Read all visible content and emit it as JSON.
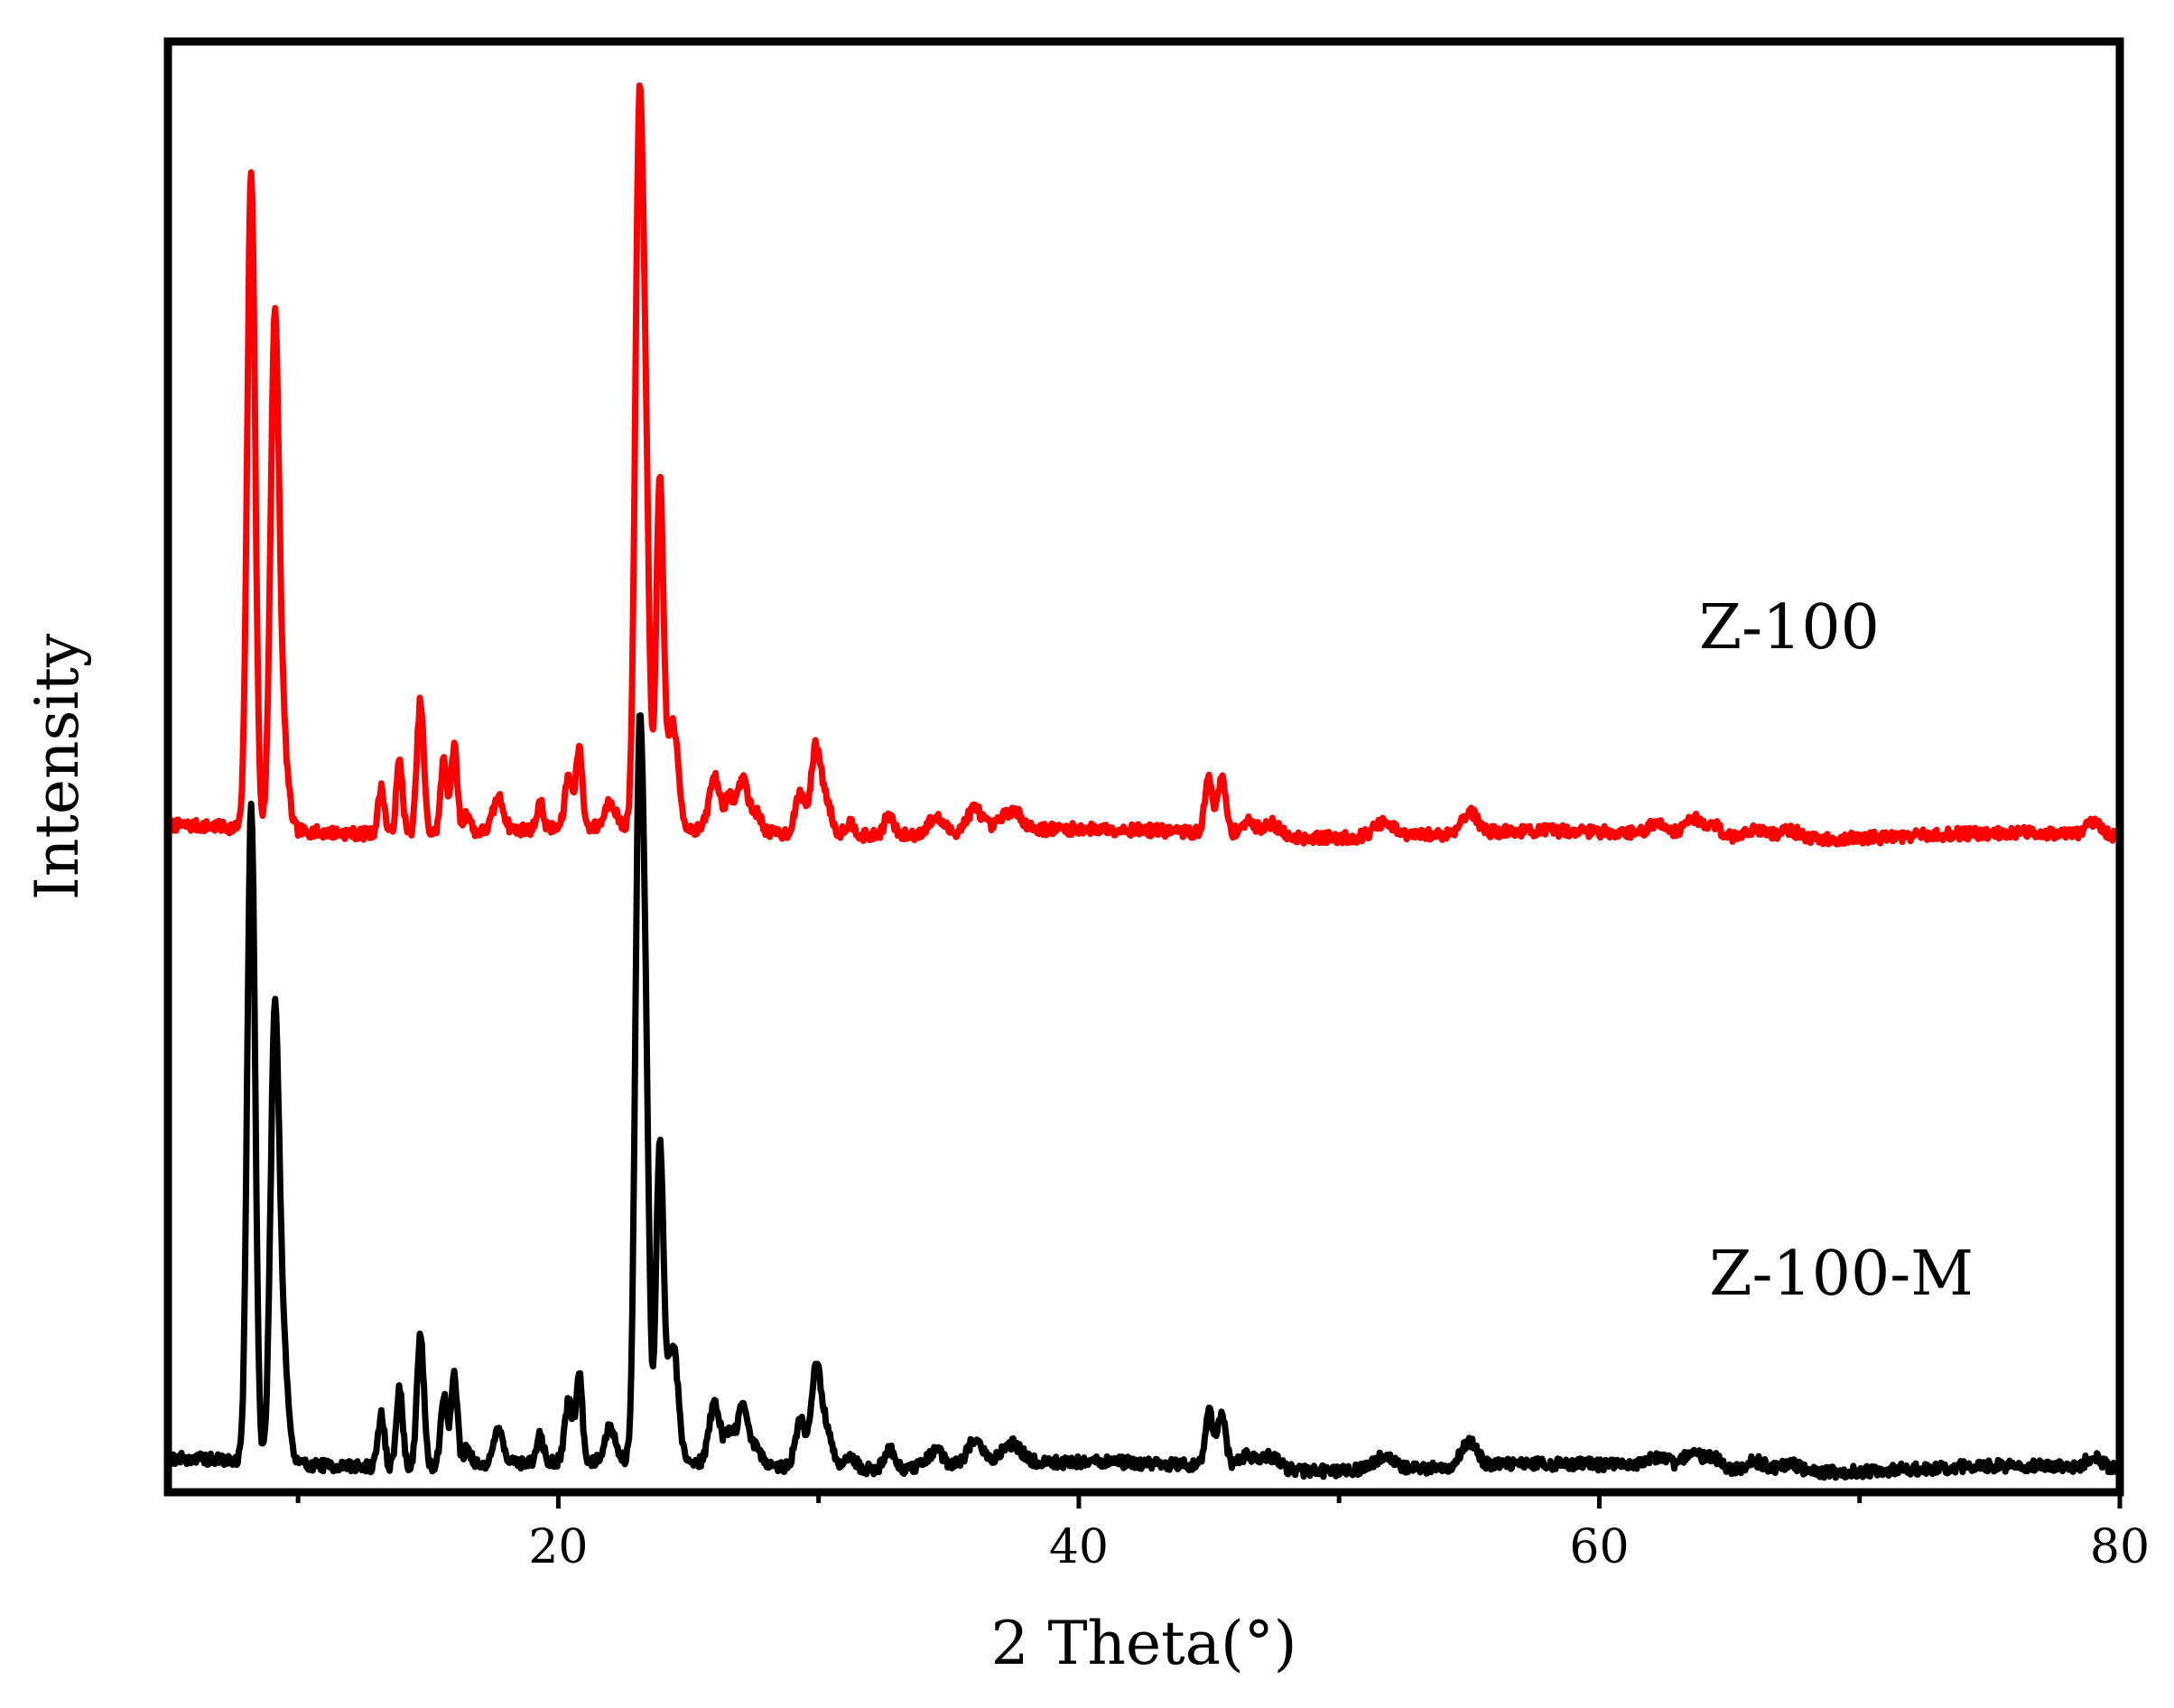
{
  "chart_data": {
    "type": "line",
    "xlabel": "2 Theta(°)",
    "ylabel": "Intensity",
    "xlim": [
      5,
      80
    ],
    "ylim": [
      0,
      110
    ],
    "x_ticks": [
      20,
      40,
      60,
      80
    ],
    "x_minor_ticks": [
      10,
      30,
      50,
      70
    ],
    "y_ticks_shown": false,
    "grid": false,
    "legend": "none",
    "series": [
      {
        "name": "Z-100",
        "color": "#ff0000",
        "baseline": 50,
        "noise_seed": 7,
        "peaks": [
          [
            8.2,
            50,
            0.15
          ],
          [
            9.1,
            37,
            0.16
          ],
          [
            9.4,
            7,
            0.2
          ],
          [
            13.2,
            3.5,
            0.12
          ],
          [
            13.9,
            5.5,
            0.12
          ],
          [
            14.7,
            10,
            0.13
          ],
          [
            15.6,
            5.5,
            0.12
          ],
          [
            16.0,
            6.5,
            0.12
          ],
          [
            16.5,
            1.5,
            0.12
          ],
          [
            17.7,
            2.5,
            0.2
          ],
          [
            19.3,
            2,
            0.12
          ],
          [
            20.4,
            4,
            0.14
          ],
          [
            20.8,
            6,
            0.12
          ],
          [
            22.0,
            2,
            0.2
          ],
          [
            23.1,
            50,
            0.15
          ],
          [
            23.35,
            24,
            0.14
          ],
          [
            23.9,
            26,
            0.14
          ],
          [
            24.4,
            8,
            0.2
          ],
          [
            26.0,
            4,
            0.2
          ],
          [
            26.6,
            2.5,
            0.2
          ],
          [
            27.1,
            4,
            0.18
          ],
          [
            27.6,
            1.5,
            0.2
          ],
          [
            29.3,
            3,
            0.2
          ],
          [
            29.9,
            6.5,
            0.18
          ],
          [
            30.3,
            2.5,
            0.2
          ],
          [
            31.2,
            1,
            0.2
          ],
          [
            32.7,
            1.5,
            0.18
          ],
          [
            34.5,
            1.2,
            0.3
          ],
          [
            36.0,
            1.8,
            0.3
          ],
          [
            37.4,
            1.5,
            0.4
          ],
          [
            45.0,
            4.2,
            0.15
          ],
          [
            45.5,
            4.2,
            0.15
          ],
          [
            46.5,
            1,
            0.3
          ],
          [
            47.4,
            1,
            0.3
          ],
          [
            51.7,
            1,
            0.4
          ],
          [
            55.0,
            1.6,
            0.3
          ],
          [
            62.3,
            0.8,
            0.4
          ],
          [
            63.6,
            1.4,
            0.3
          ],
          [
            64.4,
            0.9,
            0.3
          ],
          [
            66.0,
            0.8,
            0.4
          ],
          [
            67.3,
            0.7,
            0.4
          ],
          [
            79.0,
            0.8,
            0.3
          ]
        ]
      },
      {
        "name": "Z-100-M",
        "color": "#000000",
        "baseline": 2,
        "noise_seed": 19,
        "peaks": [
          [
            8.2,
            50,
            0.15
          ],
          [
            9.1,
            32,
            0.16
          ],
          [
            9.4,
            9,
            0.2
          ],
          [
            13.2,
            4,
            0.12
          ],
          [
            13.9,
            6,
            0.12
          ],
          [
            14.7,
            10,
            0.13
          ],
          [
            15.6,
            5.5,
            0.12
          ],
          [
            16.0,
            7,
            0.12
          ],
          [
            16.5,
            1.5,
            0.12
          ],
          [
            17.7,
            2.5,
            0.2
          ],
          [
            19.3,
            2,
            0.12
          ],
          [
            20.4,
            4.5,
            0.14
          ],
          [
            20.8,
            6.5,
            0.12
          ],
          [
            22.0,
            2.5,
            0.2
          ],
          [
            23.1,
            50,
            0.15
          ],
          [
            23.35,
            26,
            0.14
          ],
          [
            23.9,
            24,
            0.14
          ],
          [
            24.4,
            9,
            0.2
          ],
          [
            26.0,
            4.5,
            0.2
          ],
          [
            26.6,
            2.5,
            0.2
          ],
          [
            27.1,
            4.5,
            0.18
          ],
          [
            27.6,
            1.5,
            0.2
          ],
          [
            29.3,
            3.5,
            0.2
          ],
          [
            29.9,
            7.5,
            0.18
          ],
          [
            30.3,
            3,
            0.2
          ],
          [
            31.2,
            1,
            0.2
          ],
          [
            32.7,
            1.5,
            0.18
          ],
          [
            34.5,
            1.2,
            0.3
          ],
          [
            36.0,
            1.8,
            0.3
          ],
          [
            37.4,
            1.5,
            0.4
          ],
          [
            45.0,
            4.2,
            0.15
          ],
          [
            45.5,
            4.2,
            0.15
          ],
          [
            46.5,
            1,
            0.3
          ],
          [
            47.4,
            1,
            0.3
          ],
          [
            51.7,
            1,
            0.4
          ],
          [
            55.0,
            1.8,
            0.3
          ],
          [
            62.3,
            0.8,
            0.4
          ],
          [
            63.6,
            1.4,
            0.3
          ],
          [
            64.4,
            0.9,
            0.3
          ],
          [
            66.0,
            0.8,
            0.4
          ],
          [
            67.3,
            0.7,
            0.4
          ],
          [
            79.0,
            0.8,
            0.3
          ]
        ]
      }
    ]
  }
}
